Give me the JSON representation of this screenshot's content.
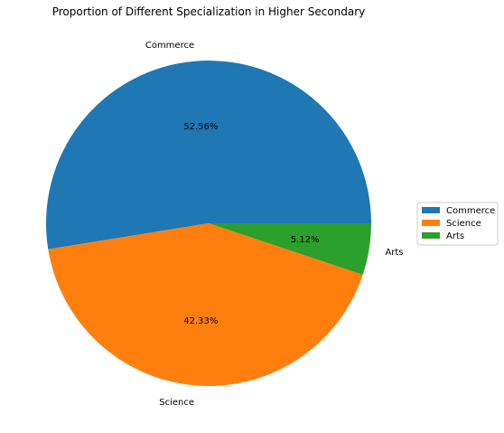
{
  "chart_data": {
    "type": "pie",
    "title": "Proportion of Different Specialization in Higher Secondary",
    "labels": [
      "Commerce",
      "Science",
      "Arts"
    ],
    "values": [
      52.56,
      42.33,
      5.12
    ],
    "percent_labels": [
      "52.56%",
      "42.33%",
      "5.12%"
    ],
    "colors": [
      "#1f77b4",
      "#ff7f0e",
      "#2ca02c"
    ],
    "start_angle_deg": 0,
    "direction": "counterclockwise",
    "legend": {
      "placement": "right",
      "entries": [
        "Commerce",
        "Science",
        "Arts"
      ]
    }
  }
}
